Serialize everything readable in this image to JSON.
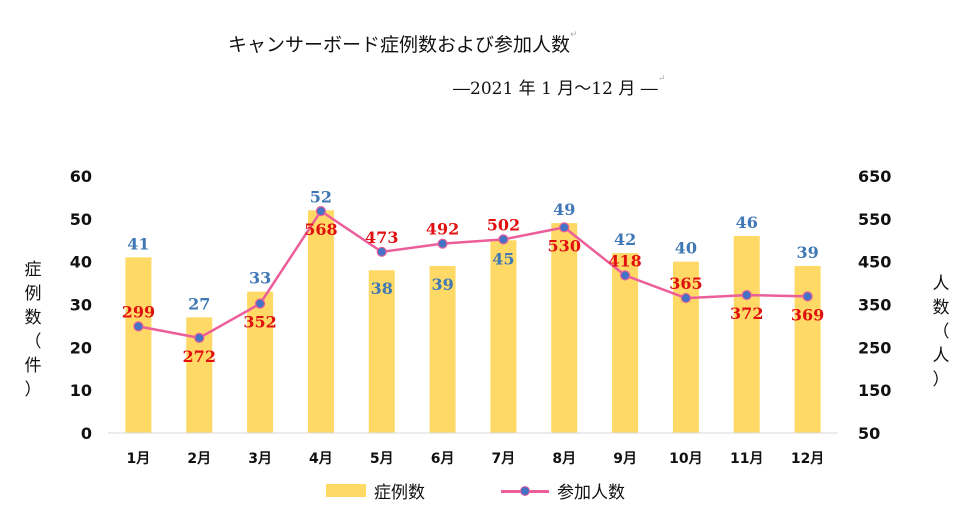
{
  "chart_data": {
    "type": "bar",
    "title": "キャンサーボード症例数および参加人数",
    "subtitle": "―2021 年 1 月～12 月 ―",
    "categories": [
      "1月",
      "2月",
      "3月",
      "4月",
      "5月",
      "6月",
      "7月",
      "8月",
      "9月",
      "10月",
      "11月",
      "12月"
    ],
    "series": [
      {
        "name": "症例数",
        "type": "bar",
        "axis": "left",
        "color": "#ffd966",
        "label_color": "#3f78b5",
        "values": [
          41,
          27,
          33,
          52,
          38,
          39,
          45,
          49,
          42,
          40,
          46,
          39
        ]
      },
      {
        "name": "参加人数",
        "type": "line",
        "axis": "right",
        "color": "#ec5e9a",
        "marker_color": "#4472c4",
        "label_color": "#e01010",
        "values": [
          299,
          272,
          352,
          568,
          473,
          492,
          502,
          530,
          418,
          365,
          372,
          369
        ]
      }
    ],
    "ylabel": "症例数（件）",
    "ylabel_right": "人数（人）",
    "ylim": [
      0,
      60
    ],
    "ylim_right": [
      50,
      650
    ],
    "yticks": [
      "0",
      "10",
      "20",
      "30",
      "40",
      "50",
      "60"
    ],
    "yticks_right": [
      "50",
      "150",
      "250",
      "350",
      "450",
      "550",
      "650"
    ],
    "grid": false,
    "legend_position": "bottom"
  },
  "edit_marks": {
    "title_mark": "↵",
    "subtitle_mark": "↵"
  }
}
